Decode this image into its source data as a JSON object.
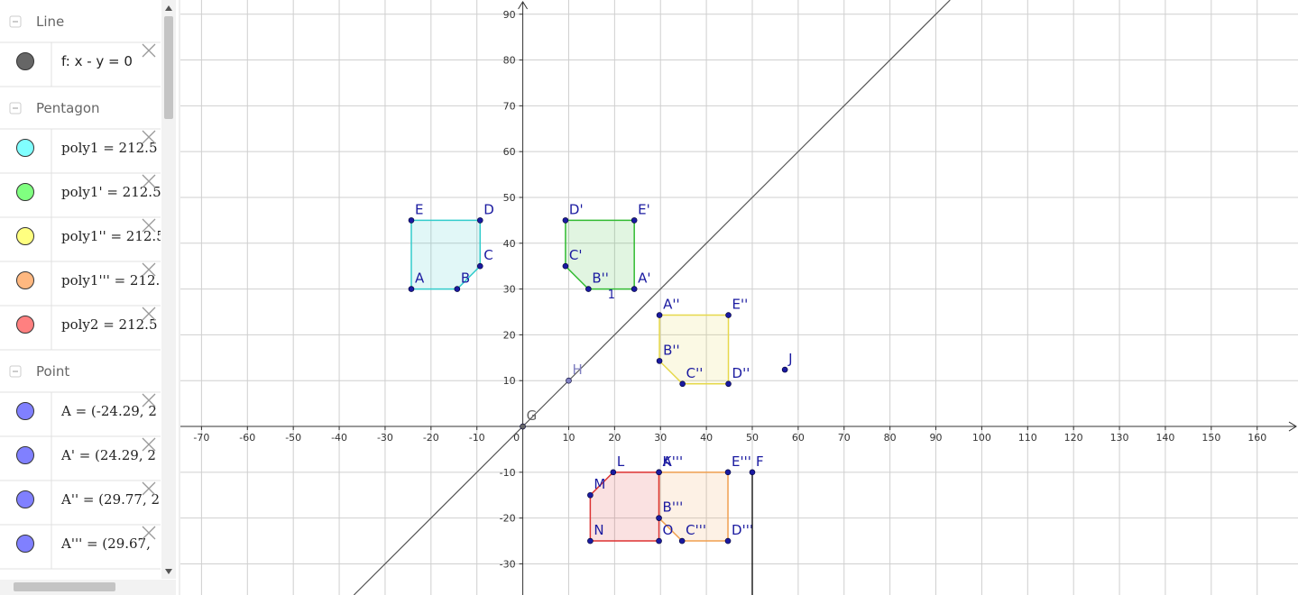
{
  "algebra": {
    "groups": [
      {
        "title": "Line",
        "items": [
          {
            "text": "f: x - y = 0",
            "color": "#666666"
          }
        ]
      },
      {
        "title": "Pentagon",
        "items": [
          {
            "text": "poly1 = 212.5",
            "color": "#80ffff"
          },
          {
            "text": "poly1' = 212.5",
            "color": "#80ff80"
          },
          {
            "text": "poly1'' = 212.5",
            "color": "#ffff80"
          },
          {
            "text": "poly1''' = 212.",
            "color": "#ffb880"
          },
          {
            "text": "poly2 = 212.5",
            "color": "#ff8080"
          }
        ]
      },
      {
        "title": "Point",
        "items": [
          {
            "text": "A = (-24.29, 2",
            "color": "#8080ff"
          },
          {
            "text": "A' = (24.29, 2",
            "color": "#8080ff"
          },
          {
            "text": "A'' = (29.77, 2",
            "color": "#8080ff"
          },
          {
            "text": "A''' = (29.67,",
            "color": "#8080ff"
          }
        ]
      }
    ]
  },
  "graphics": {
    "xlim": [
      -74.6,
      168.9
    ],
    "ylim": [
      -36.8,
      93.1
    ],
    "xticks": [
      -70,
      -60,
      -50,
      -40,
      -30,
      -20,
      -10,
      0,
      10,
      20,
      30,
      40,
      50,
      60,
      70,
      80,
      90,
      100,
      110,
      120,
      130,
      140,
      150,
      160
    ],
    "yticks": [
      -30,
      -20,
      -10,
      10,
      20,
      30,
      40,
      50,
      60,
      70,
      80,
      90
    ],
    "polygons": [
      {
        "name": "poly1",
        "color": "#33cccc",
        "vertices": [
          {
            "label": "A",
            "x": -24.29,
            "y": 30
          },
          {
            "label": "B",
            "x": -14.3,
            "y": 30
          },
          {
            "label": "C",
            "x": -9.3,
            "y": 35
          },
          {
            "label": "D",
            "x": -9.3,
            "y": 45
          },
          {
            "label": "E",
            "x": -24.29,
            "y": 45
          }
        ]
      },
      {
        "name": "poly1'",
        "color": "#33bb33",
        "vertices": [
          {
            "label": "A'",
            "x": 24.29,
            "y": 30
          },
          {
            "label": "B''",
            "x": 14.3,
            "y": 30
          },
          {
            "label": "C'",
            "x": 9.3,
            "y": 35
          },
          {
            "label": "D'",
            "x": 9.3,
            "y": 45
          },
          {
            "label": "E'",
            "x": 24.29,
            "y": 45
          }
        ]
      },
      {
        "name": "poly1''",
        "color": "#e6d84a",
        "vertices": [
          {
            "label": "A''",
            "x": 29.77,
            "y": 24.3
          },
          {
            "label": "B''",
            "x": 29.77,
            "y": 14.3
          },
          {
            "label": "C''",
            "x": 34.8,
            "y": 9.3
          },
          {
            "label": "D''",
            "x": 44.8,
            "y": 9.3
          },
          {
            "label": "E''",
            "x": 44.8,
            "y": 24.3
          }
        ]
      },
      {
        "name": "poly1'''",
        "color": "#f0a050",
        "vertices": [
          {
            "label": "A'''",
            "x": 29.67,
            "y": -10
          },
          {
            "label": "B'''",
            "x": 29.67,
            "y": -20
          },
          {
            "label": "C'''",
            "x": 34.7,
            "y": -25
          },
          {
            "label": "D'''",
            "x": 44.7,
            "y": -25
          },
          {
            "label": "E'''",
            "x": 44.7,
            "y": -10
          }
        ]
      },
      {
        "name": "poly2",
        "color": "#dd3333",
        "vertices": [
          {
            "label": "K",
            "x": 29.67,
            "y": -10
          },
          {
            "label": "L",
            "x": 19.7,
            "y": -10
          },
          {
            "label": "M",
            "x": 14.7,
            "y": -15
          },
          {
            "label": "N",
            "x": 14.7,
            "y": -25
          },
          {
            "label": "O",
            "x": 29.67,
            "y": -25
          }
        ]
      }
    ],
    "points": [
      {
        "label": "F",
        "x": 50,
        "y": -10,
        "color": "#1a1aa0"
      },
      {
        "label": "G",
        "x": 0,
        "y": 0,
        "color": "#666666"
      },
      {
        "label": "H",
        "x": 10,
        "y": 10,
        "color": "#8080c0"
      },
      {
        "label": "J",
        "x": 57.1,
        "y": 12.4,
        "color": "#1a1aa0"
      }
    ],
    "annotation": {
      "text": "1",
      "x": 18.5,
      "y": 28
    }
  }
}
